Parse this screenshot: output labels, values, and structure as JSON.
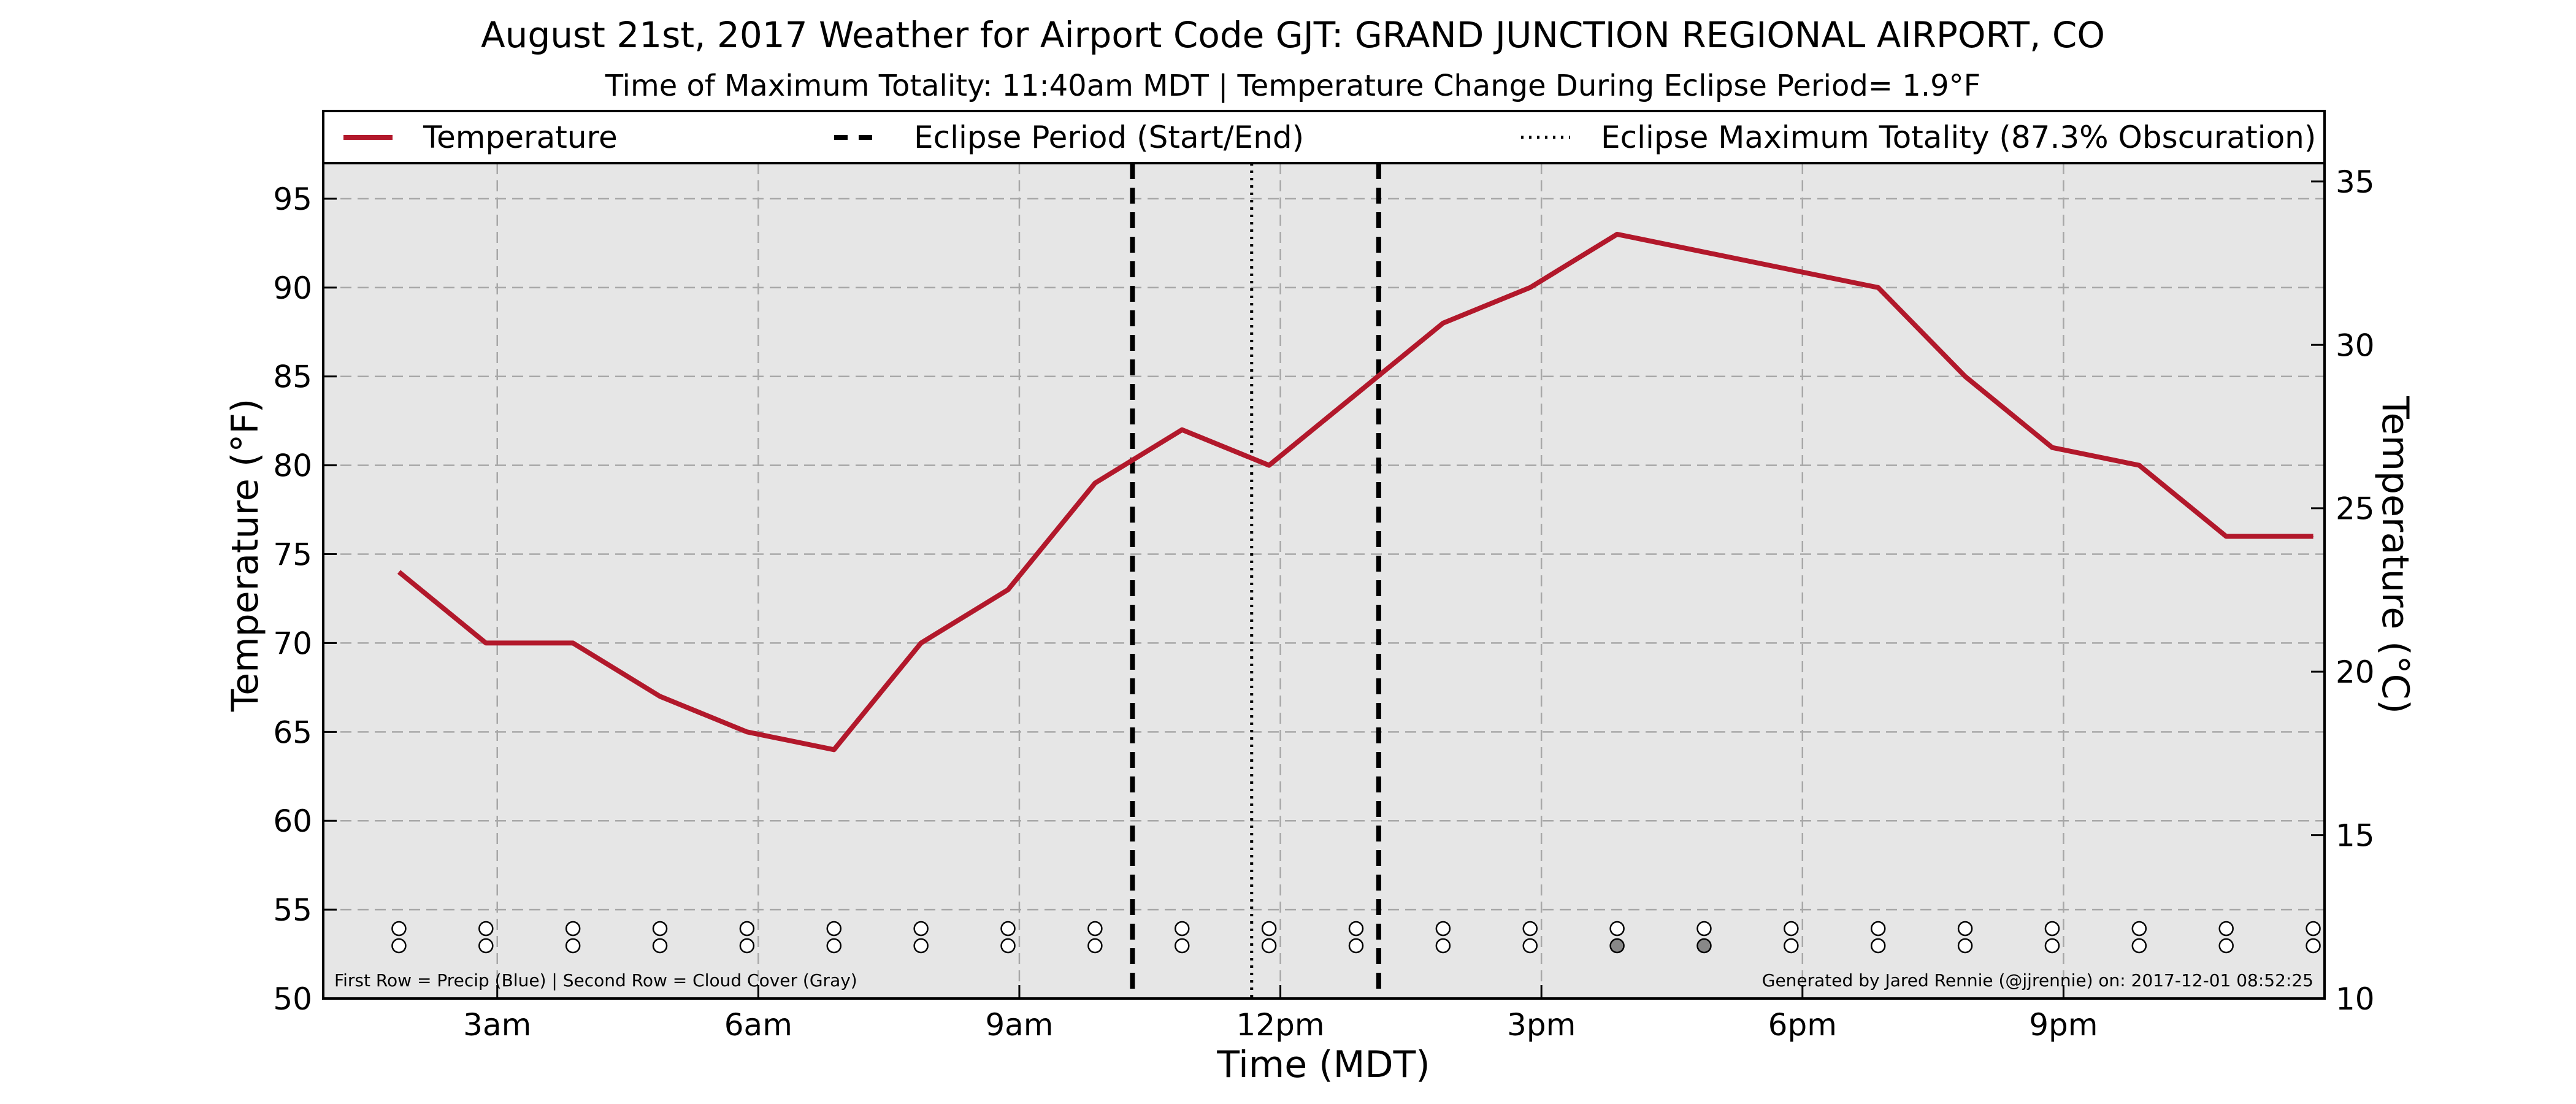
{
  "chart_data": {
    "type": "line",
    "title": "August 21st, 2017 Weather for Airport Code GJT: GRAND JUNCTION REGIONAL AIRPORT, CO",
    "subtitle": "Time of Maximum Totality: 11:40am MDT | Temperature Change During Eclipse Period= 1.9°F",
    "xlabel": "Time (MDT)",
    "ylabel": "Temperature (°F)",
    "ylabel_right": "Temperature (°C)",
    "xlim": [
      1.0,
      24.0
    ],
    "ylim": [
      50,
      97
    ],
    "ylim_right": [
      10,
      35.56
    ],
    "x_ticks": [
      {
        "x": 3,
        "label": "3am"
      },
      {
        "x": 6,
        "label": "6am"
      },
      {
        "x": 9,
        "label": "9am"
      },
      {
        "x": 12,
        "label": "12pm"
      },
      {
        "x": 15,
        "label": "3pm"
      },
      {
        "x": 18,
        "label": "6pm"
      },
      {
        "x": 21,
        "label": "9pm"
      }
    ],
    "y_ticks": [
      50,
      55,
      60,
      65,
      70,
      75,
      80,
      85,
      90,
      95
    ],
    "y_ticks_right": [
      10,
      15,
      20,
      25,
      30,
      35
    ],
    "grid": true,
    "legend_position": "top",
    "legend": [
      {
        "label": "Temperature",
        "style": "solid",
        "color": "#b2182b"
      },
      {
        "label": "Eclipse Period (Start/End)",
        "style": "dashed",
        "color": "#000000"
      },
      {
        "label": "Eclipse Maximum Totality (87.3% Obscuration)",
        "style": "dotted",
        "color": "#000000"
      }
    ],
    "series": [
      {
        "name": "Temperature",
        "color": "#b2182b",
        "x": [
          1.87,
          2.87,
          3.87,
          4.87,
          5.87,
          6.87,
          7.87,
          8.87,
          9.87,
          10.87,
          11.87,
          12.87,
          13.87,
          14.87,
          15.87,
          16.87,
          17.87,
          18.87,
          19.87,
          20.87,
          21.87,
          22.87,
          23.87
        ],
        "values": [
          74,
          70,
          70,
          67,
          65,
          64,
          70,
          73,
          79,
          82,
          80,
          84,
          88,
          90,
          93,
          92,
          91,
          90,
          85,
          81,
          80,
          76,
          76
        ]
      }
    ],
    "eclipse_start": 10.3,
    "eclipse_end": 13.13,
    "eclipse_max": 11.67,
    "precip_row": [
      "none",
      "none",
      "none",
      "none",
      "none",
      "none",
      "none",
      "none",
      "none",
      "none",
      "none",
      "none",
      "none",
      "none",
      "none",
      "none",
      "none",
      "none",
      "none",
      "none",
      "none",
      "none",
      "none"
    ],
    "cloud_row": [
      "clear",
      "clear",
      "clear",
      "clear",
      "clear",
      "clear",
      "clear",
      "clear",
      "clear",
      "clear",
      "clear",
      "clear",
      "clear",
      "clear",
      "few",
      "few",
      "clear",
      "clear",
      "clear",
      "clear",
      "clear",
      "clear",
      "clear"
    ],
    "footnote_left": "First Row = Precip (Blue) | Second Row = Cloud Cover (Gray)",
    "footnote_right": "Generated by Jared Rennie (@jjrennie) on: 2017-12-01 08:52:25",
    "colors": {
      "plot_background": "#e6e6e6",
      "grid": "#a8a8a8",
      "temperature_line": "#b2182b",
      "marker_fill": "#ffffff",
      "marker_cloud_few": "#888888"
    }
  }
}
